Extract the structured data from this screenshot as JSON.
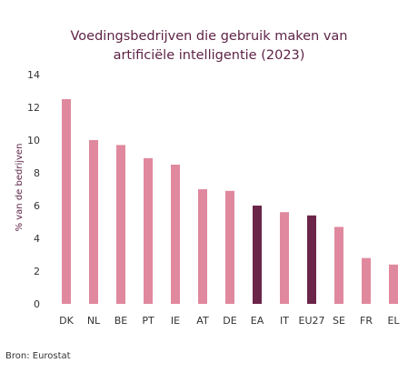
{
  "chart_data": {
    "type": "bar",
    "title_lines": [
      "Voedingsbedrijven die gebruik maken van",
      "artificiële intelligentie (2023)"
    ],
    "ylabel": "% van de bedrijven",
    "xlabel": "",
    "categories": [
      "DK",
      "NL",
      "BE",
      "PT",
      "IE",
      "AT",
      "DE",
      "EA",
      "IT",
      "EU27",
      "SE",
      "FR",
      "EL"
    ],
    "values": [
      12.5,
      10.0,
      9.7,
      8.9,
      8.5,
      7.0,
      6.9,
      6.0,
      5.6,
      5.4,
      4.7,
      2.8,
      2.4
    ],
    "highlighted": [
      "EA",
      "EU27"
    ],
    "ylim": [
      0,
      14
    ],
    "yticks": [
      0,
      2,
      4,
      6,
      8,
      10,
      12,
      14
    ],
    "grid": false,
    "colors": {
      "default": "#e0899e",
      "highlight": "#6b2548"
    }
  },
  "source": "Bron: Eurostat"
}
